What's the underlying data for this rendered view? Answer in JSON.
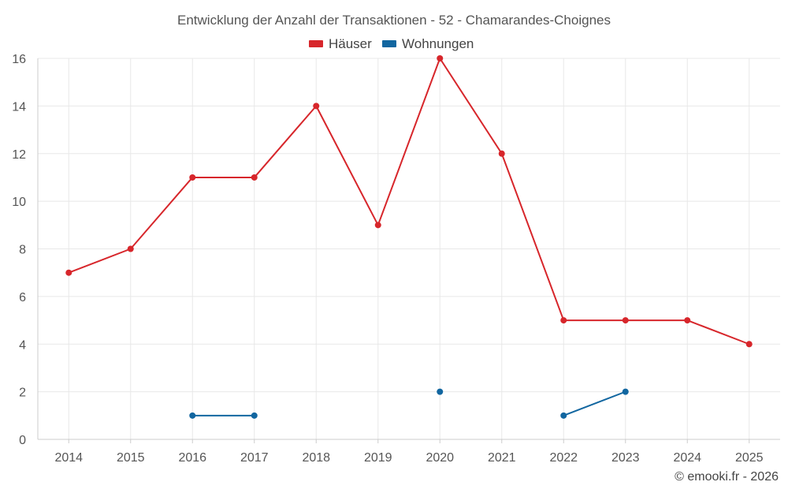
{
  "chart_data": {
    "type": "line",
    "title": "Entwicklung der Anzahl der Transaktionen - 52 - Chamarandes-Choignes",
    "categories": [
      "2014",
      "2015",
      "2016",
      "2017",
      "2018",
      "2019",
      "2020",
      "2021",
      "2022",
      "2023",
      "2024",
      "2025"
    ],
    "ylim": [
      0,
      16
    ],
    "yticks": [
      0,
      2,
      4,
      6,
      8,
      10,
      12,
      14,
      16
    ],
    "grid": true,
    "legend": "top-center",
    "series": [
      {
        "name": "Häuser",
        "color": "#d7262b",
        "values": [
          7,
          8,
          11,
          11,
          14,
          9,
          16,
          12,
          5,
          5,
          5,
          4
        ]
      },
      {
        "name": "Wohnungen",
        "color": "#1166a0",
        "values": [
          null,
          null,
          1,
          1,
          null,
          null,
          2,
          null,
          1,
          2,
          null,
          null
        ]
      }
    ]
  },
  "credit": "© emooki.fr - 2026"
}
